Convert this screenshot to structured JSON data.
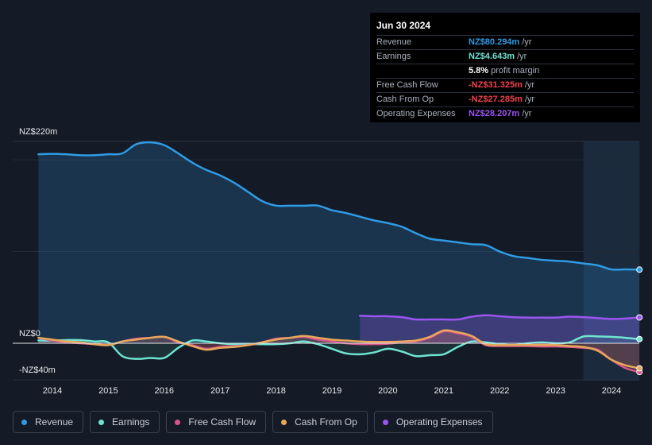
{
  "tooltip": {
    "date": "Jun 30 2024",
    "rows": [
      {
        "label": "Revenue",
        "value": "NZ$80.294m",
        "unit": "/yr",
        "color": "#2f9be5"
      },
      {
        "label": "Earnings",
        "value": "NZ$4.643m",
        "unit": "/yr",
        "color": "#6ee5d2"
      },
      {
        "label": "",
        "value": "5.8%",
        "unit": "profit margin",
        "color": "#ffffff"
      },
      {
        "label": "Free Cash Flow",
        "value": "-NZ$31.325m",
        "unit": "/yr",
        "color": "#f0404f"
      },
      {
        "label": "Cash From Op",
        "value": "-NZ$27.285m",
        "unit": "/yr",
        "color": "#f0404f"
      },
      {
        "label": "Operating Expenses",
        "value": "NZ$28.207m",
        "unit": "/yr",
        "color": "#9b55f0"
      }
    ]
  },
  "legend": [
    {
      "name": "Revenue",
      "color": "#2f9be5"
    },
    {
      "name": "Earnings",
      "color": "#6ee5d2"
    },
    {
      "name": "Free Cash Flow",
      "color": "#d6558a"
    },
    {
      "name": "Cash From Op",
      "color": "#e8a85a"
    },
    {
      "name": "Operating Expenses",
      "color": "#9b55f0"
    }
  ],
  "chart_data": {
    "type": "line",
    "title": "",
    "ylim": [
      -40,
      220
    ],
    "y_tick_labels": [
      "NZ$220m",
      "NZ$0",
      "-NZ$40m"
    ],
    "x_tick_labels": [
      "2014",
      "2015",
      "2016",
      "2017",
      "2018",
      "2019",
      "2020",
      "2021",
      "2022",
      "2023",
      "2024"
    ],
    "highlight_start": 2023.5,
    "series": [
      {
        "name": "Revenue",
        "color": "#2f9be5",
        "x": [
          2013.75,
          2014.0,
          2014.25,
          2014.5,
          2014.75,
          2015.0,
          2015.25,
          2015.5,
          2015.75,
          2016.0,
          2016.25,
          2016.5,
          2016.75,
          2017.0,
          2017.25,
          2017.5,
          2017.75,
          2018.0,
          2018.25,
          2018.5,
          2018.75,
          2019.0,
          2019.25,
          2019.5,
          2019.75,
          2020.0,
          2020.25,
          2020.5,
          2020.75,
          2021.0,
          2021.25,
          2021.5,
          2021.75,
          2022.0,
          2022.25,
          2022.5,
          2022.75,
          2023.0,
          2023.25,
          2023.5,
          2023.75,
          2024.0,
          2024.25,
          2024.5
        ],
        "y": [
          206,
          206.5,
          206,
          205,
          205,
          206,
          207,
          217,
          219,
          216,
          207,
          197,
          189,
          183,
          175,
          165,
          155,
          150,
          150,
          150,
          150,
          145,
          142,
          138,
          134,
          131,
          127,
          120,
          114,
          112,
          110,
          108,
          107,
          100,
          95,
          93,
          91,
          90,
          89,
          87,
          85,
          80.5,
          80.5,
          80.3
        ]
      },
      {
        "name": "Operating Expenses",
        "color": "#9b55f0",
        "x": [
          2019.5,
          2019.75,
          2020.0,
          2020.25,
          2020.5,
          2020.75,
          2021.0,
          2021.25,
          2021.5,
          2021.75,
          2022.0,
          2022.25,
          2022.5,
          2022.75,
          2023.0,
          2023.25,
          2023.5,
          2023.75,
          2024.0,
          2024.25,
          2024.5
        ],
        "y": [
          30,
          29.5,
          29.5,
          28.5,
          26,
          26,
          26,
          26,
          29,
          30.5,
          29.5,
          28.5,
          28,
          28,
          28,
          29,
          28.5,
          27.5,
          26.5,
          27,
          28.2
        ]
      },
      {
        "name": "Earnings",
        "color": "#6ee5d2",
        "x": [
          2013.75,
          2014.0,
          2014.25,
          2014.5,
          2014.75,
          2015.0,
          2015.25,
          2015.5,
          2015.75,
          2016.0,
          2016.25,
          2016.5,
          2016.75,
          2017.0,
          2017.25,
          2017.5,
          2017.75,
          2018.0,
          2018.25,
          2018.5,
          2018.75,
          2019.0,
          2019.25,
          2019.5,
          2019.75,
          2020.0,
          2020.25,
          2020.5,
          2020.75,
          2021.0,
          2021.25,
          2021.5,
          2021.75,
          2022.0,
          2022.25,
          2022.5,
          2022.75,
          2023.0,
          2023.25,
          2023.5,
          2023.75,
          2024.0,
          2024.25,
          2024.5
        ],
        "y": [
          3,
          3,
          3.5,
          3.5,
          2,
          1,
          -14,
          -17,
          -16,
          -16,
          -5,
          3,
          2,
          0,
          -1,
          -1,
          -1,
          -1,
          0,
          2,
          -1,
          -6,
          -11,
          -12,
          -10,
          -6,
          -9,
          -14,
          -13,
          -12,
          -4,
          2,
          1,
          -1,
          -2,
          0,
          1,
          0,
          1,
          7.5,
          7.5,
          7,
          6,
          4.6
        ]
      },
      {
        "name": "Free Cash Flow",
        "color": "#d6558a",
        "x": [
          2013.75,
          2014.0,
          2014.25,
          2014.5,
          2014.75,
          2015.0,
          2015.25,
          2015.5,
          2015.75,
          2016.0,
          2016.25,
          2016.5,
          2016.75,
          2017.0,
          2017.25,
          2017.5,
          2017.75,
          2018.0,
          2018.25,
          2018.5,
          2018.75,
          2019.0,
          2019.25,
          2019.5,
          2019.75,
          2020.0,
          2020.25,
          2020.5,
          2020.75,
          2021.0,
          2021.25,
          2021.5,
          2021.75,
          2022.0,
          2022.25,
          2022.5,
          2022.75,
          2023.0,
          2023.25,
          2023.5,
          2023.75,
          2024.0,
          2024.25,
          2024.5
        ],
        "y": [
          6,
          3,
          1,
          0,
          -1,
          -2,
          2,
          5,
          6,
          7,
          1,
          -2,
          -6,
          -4,
          -3,
          -2,
          1,
          5,
          6,
          7,
          4,
          2,
          0,
          -1,
          -1,
          -0.5,
          1,
          2,
          6,
          13,
          11,
          7,
          -2,
          -3,
          -3,
          -3,
          -3.5,
          -3.5,
          -4,
          -5,
          -7,
          -18,
          -27,
          -31.3
        ]
      },
      {
        "name": "Cash From Op",
        "color": "#e8a85a",
        "x": [
          2013.75,
          2014.0,
          2014.25,
          2014.5,
          2014.75,
          2015.0,
          2015.25,
          2015.5,
          2015.75,
          2016.0,
          2016.25,
          2016.5,
          2016.75,
          2017.0,
          2017.25,
          2017.5,
          2017.75,
          2018.0,
          2018.25,
          2018.5,
          2018.75,
          2019.0,
          2019.25,
          2019.5,
          2019.75,
          2020.0,
          2020.25,
          2020.5,
          2020.75,
          2021.0,
          2021.25,
          2021.5,
          2021.75,
          2022.0,
          2022.25,
          2022.5,
          2022.75,
          2023.0,
          2023.25,
          2023.5,
          2023.75,
          2024.0,
          2024.25,
          2024.5
        ],
        "y": [
          6,
          4,
          2,
          1,
          -1,
          -2,
          2,
          4,
          6,
          7,
          2,
          -3,
          -7,
          -5,
          -4,
          -2,
          1,
          4,
          6,
          8,
          6,
          4,
          3,
          2,
          1.5,
          1.5,
          2,
          3,
          7,
          14,
          12,
          8,
          -1,
          -2,
          -2,
          -2,
          -2,
          -2,
          -3,
          -4,
          -8,
          -18,
          -24,
          -27.3
        ]
      }
    ]
  }
}
